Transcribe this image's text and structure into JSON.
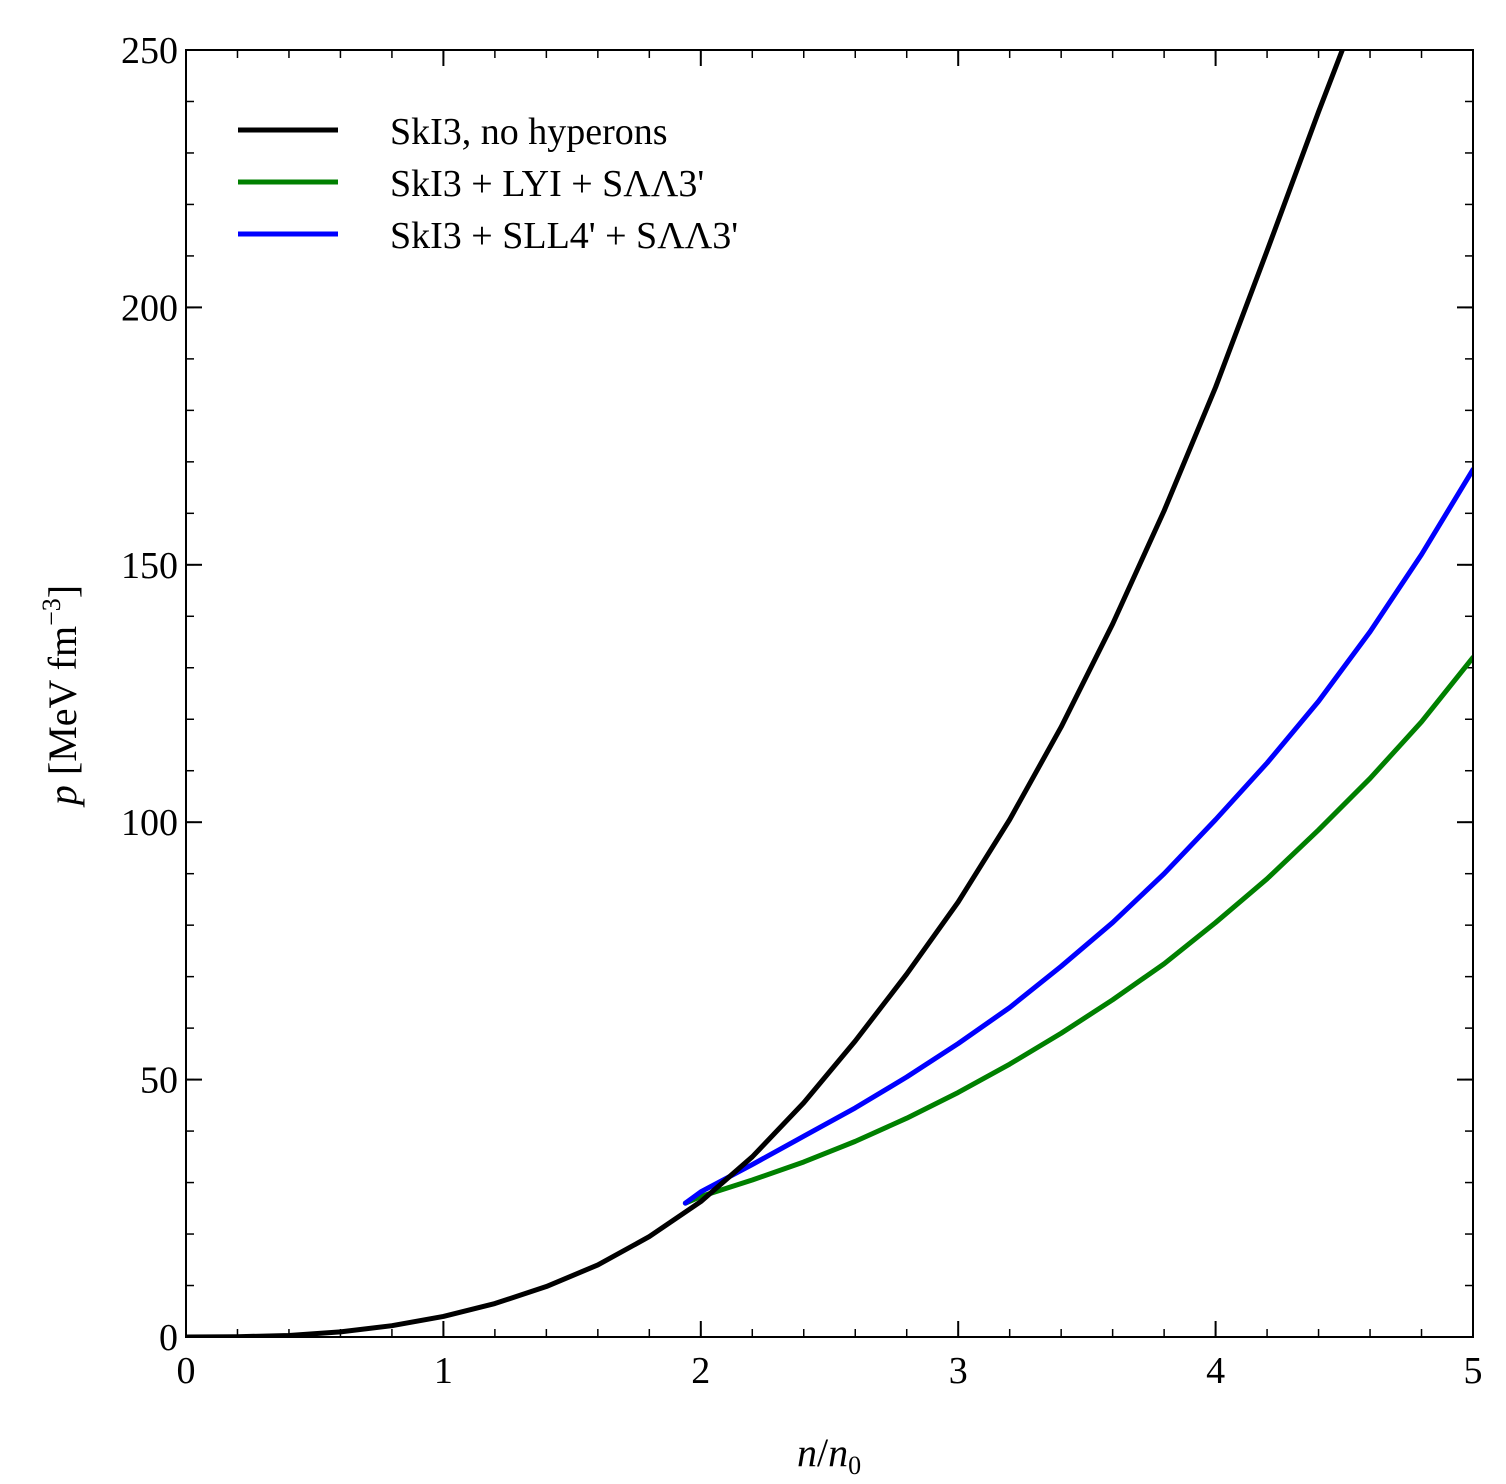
{
  "chart_data": {
    "type": "line",
    "title": "",
    "xlabel": {
      "main": "n",
      "sep": "/",
      "den": "n",
      "den_sub": "0"
    },
    "ylabel": {
      "var": "p",
      "unit_open": " [MeV fm",
      "unit_sup": "−3",
      "unit_close": "]"
    },
    "xlim": [
      0,
      5
    ],
    "ylim": [
      0,
      250
    ],
    "x_ticks": [
      0,
      1,
      2,
      3,
      4,
      5
    ],
    "x_tick_labels": [
      "0",
      "1",
      "2",
      "3",
      "4",
      "5"
    ],
    "y_ticks": [
      0,
      50,
      100,
      150,
      200,
      250
    ],
    "y_tick_labels": [
      "0",
      "50",
      "100",
      "150",
      "200",
      "250"
    ],
    "x_minor_step": 0.2,
    "y_minor_step": 10,
    "legend_position": "top-left",
    "grid": false,
    "series": [
      {
        "name": "SkI3, no hyperons",
        "color": "#000000",
        "x": [
          0,
          0.2,
          0.4,
          0.6,
          0.8,
          1.0,
          1.2,
          1.4,
          1.6,
          1.8,
          2.0,
          2.2,
          2.4,
          2.6,
          2.8,
          3.0,
          3.2,
          3.4,
          3.6,
          3.8,
          4.0,
          4.2,
          4.4,
          4.5
        ],
        "y": [
          0,
          0.05,
          0.3,
          1.0,
          2.2,
          4.0,
          6.5,
          9.8,
          14.0,
          19.5,
          26.3,
          35.0,
          45.5,
          57.5,
          70.5,
          84.5,
          100.5,
          118.5,
          138.5,
          160.5,
          184.5,
          211.0,
          238.0,
          251.0
        ]
      },
      {
        "name": "SkI3 + LYI + SΛΛ3'",
        "color": "#008000",
        "x": [
          1.94,
          2.0,
          2.2,
          2.4,
          2.6,
          2.8,
          3.0,
          3.2,
          3.4,
          3.6,
          3.8,
          4.0,
          4.2,
          4.4,
          4.6,
          4.8,
          5.0
        ],
        "y": [
          26.0,
          27.3,
          30.5,
          34.0,
          38.0,
          42.5,
          47.5,
          53.0,
          59.0,
          65.5,
          72.5,
          80.5,
          89.0,
          98.5,
          108.5,
          119.5,
          132.0
        ]
      },
      {
        "name": "SkI3 + SLL4' + SΛΛ3'",
        "color": "#0000ff",
        "x": [
          1.94,
          2.0,
          2.2,
          2.4,
          2.6,
          2.8,
          3.0,
          3.2,
          3.4,
          3.6,
          3.8,
          4.0,
          4.2,
          4.4,
          4.6,
          4.8,
          5.0
        ],
        "y": [
          26.0,
          28.2,
          33.5,
          39.0,
          44.5,
          50.5,
          57.0,
          64.0,
          72.0,
          80.5,
          90.0,
          100.5,
          111.5,
          123.5,
          137.0,
          152.0,
          168.5
        ]
      }
    ]
  }
}
